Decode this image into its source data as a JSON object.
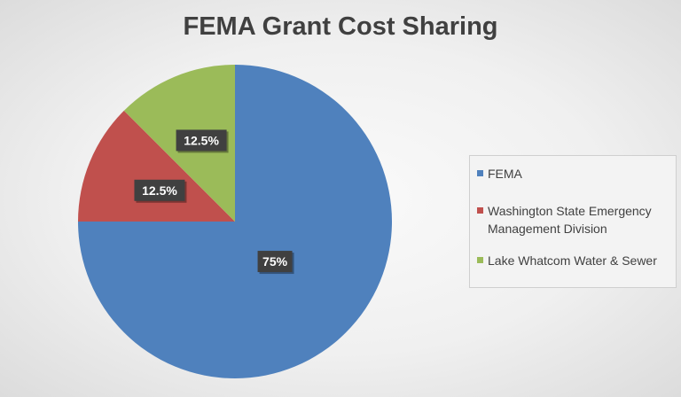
{
  "chart_data": {
    "type": "pie",
    "title": "FEMA Grant Cost Sharing",
    "categories": [
      "FEMA",
      "Washington State Emergency Management Division",
      "Lake Whatcom Water & Sewer"
    ],
    "values": [
      75,
      12.5,
      12.5
    ],
    "data_labels": [
      "75%",
      "12.5%",
      "12.5%"
    ],
    "colors": [
      "#4f81bd",
      "#c0504d",
      "#9bbb59"
    ],
    "legend_position": "right"
  }
}
